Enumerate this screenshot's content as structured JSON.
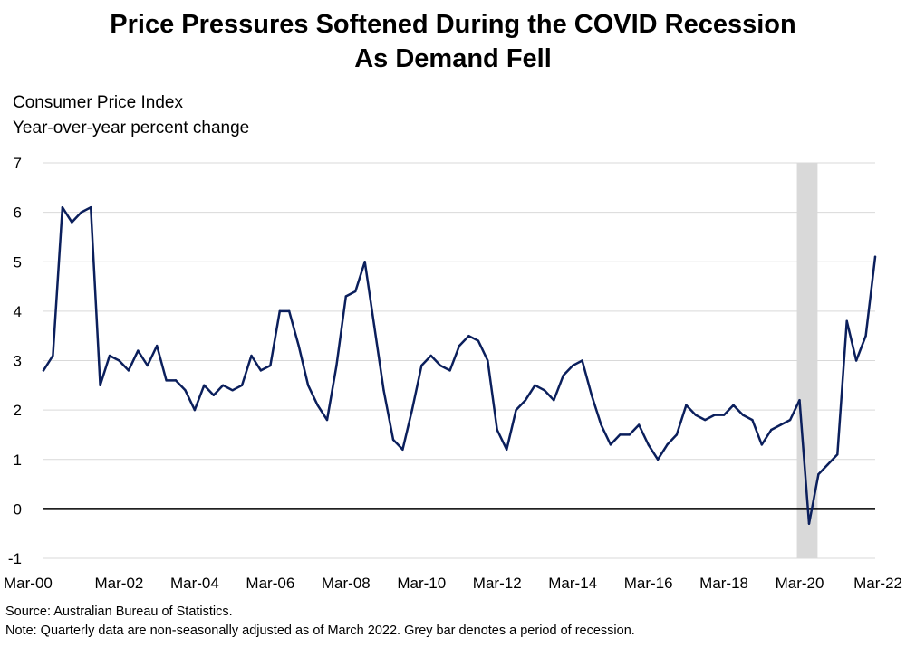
{
  "chart_data": {
    "type": "line",
    "title": [
      "Price Pressures Softened During the COVID Recession",
      "As Demand Fell"
    ],
    "ylabel": [
      "Consumer Price Index",
      "Year-over-year percent change"
    ],
    "xlabel": "",
    "ylim": [
      -1,
      7
    ],
    "yticks": [
      -1,
      0,
      1,
      2,
      3,
      4,
      5,
      6,
      7
    ],
    "ytick_labels": [
      "-1",
      "0",
      "1",
      "2",
      "3",
      "4",
      "5",
      "6",
      "7"
    ],
    "xtick_labels": [
      "Mar-00",
      "Mar-02",
      "Mar-04",
      "Mar-06",
      "Mar-08",
      "Mar-10",
      "Mar-12",
      "Mar-14",
      "Mar-16",
      "Mar-18",
      "Mar-20",
      "Mar-22"
    ],
    "x_start_label": "Mar-00",
    "x_frequency": "quarterly",
    "grid": true,
    "line_color": "#0b1f5c",
    "zero_line_color": "#000000",
    "recession_color": "#d9d9d9",
    "recession_shading": {
      "start": "Mar-20",
      "end": "Sep-20"
    },
    "series": [
      {
        "values": [
          2.8,
          3.1,
          6.1,
          5.8,
          6.0,
          6.1,
          2.5,
          3.1,
          3.0,
          2.8,
          3.2,
          2.9,
          3.3,
          2.6,
          2.6,
          2.4,
          2.0,
          2.5,
          2.3,
          2.5,
          2.4,
          2.5,
          3.1,
          2.8,
          2.9,
          4.0,
          4.0,
          3.3,
          2.5,
          2.1,
          1.8,
          2.9,
          4.3,
          4.4,
          5.0,
          3.7,
          2.4,
          1.4,
          1.2,
          2.0,
          2.9,
          3.1,
          2.9,
          2.8,
          3.3,
          3.5,
          3.4,
          3.0,
          1.6,
          1.2,
          2.0,
          2.2,
          2.5,
          2.4,
          2.2,
          2.7,
          2.9,
          3.0,
          2.3,
          1.7,
          1.3,
          1.5,
          1.5,
          1.7,
          1.3,
          1.0,
          1.3,
          1.5,
          2.1,
          1.9,
          1.8,
          1.9,
          1.9,
          2.1,
          1.9,
          1.8,
          1.3,
          1.6,
          1.7,
          1.8,
          2.2,
          -0.3,
          0.7,
          0.9,
          1.1,
          3.8,
          3.0,
          3.5,
          5.1
        ]
      }
    ]
  },
  "footer": {
    "source": "Source: Australian Bureau of Statistics.",
    "note": "Note: Quarterly data are non-seasonally adjusted as of March 2022. Grey bar denotes a period of recession."
  }
}
